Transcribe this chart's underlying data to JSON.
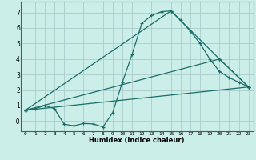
{
  "title": "",
  "xlabel": "Humidex (Indice chaleur)",
  "background_color": "#cceee8",
  "grid_color": "#aacccc",
  "line_color": "#1a6e6a",
  "xlim": [
    -0.5,
    23.5
  ],
  "ylim": [
    -0.65,
    7.7
  ],
  "xticks": [
    0,
    1,
    2,
    3,
    4,
    5,
    6,
    7,
    8,
    9,
    10,
    11,
    12,
    13,
    14,
    15,
    16,
    17,
    18,
    19,
    20,
    21,
    22,
    23
  ],
  "yticks": [
    0,
    1,
    2,
    3,
    4,
    5,
    6,
    7
  ],
  "ytick_labels": [
    "-0",
    "1",
    "2",
    "3",
    "4",
    "5",
    "6",
    "7"
  ],
  "series0_x": [
    0,
    1,
    2,
    3,
    4,
    5,
    6,
    7,
    8,
    9,
    10,
    11,
    12,
    13,
    14,
    15,
    16,
    17,
    18,
    19,
    20,
    21,
    22,
    23
  ],
  "series0_y": [
    0.7,
    0.8,
    1.0,
    0.8,
    -0.2,
    -0.3,
    -0.15,
    -0.18,
    -0.38,
    0.55,
    2.5,
    4.3,
    6.3,
    6.8,
    7.05,
    7.1,
    6.5,
    5.8,
    5.0,
    4.0,
    3.2,
    2.8,
    2.5,
    2.2
  ],
  "series1_x": [
    0,
    23
  ],
  "series1_y": [
    0.7,
    2.2
  ],
  "series2_x": [
    0,
    15,
    20,
    23
  ],
  "series2_y": [
    0.7,
    7.1,
    4.0,
    2.2
  ],
  "series3_x": [
    0,
    20,
    23
  ],
  "series3_y": [
    0.7,
    4.0,
    2.2
  ]
}
